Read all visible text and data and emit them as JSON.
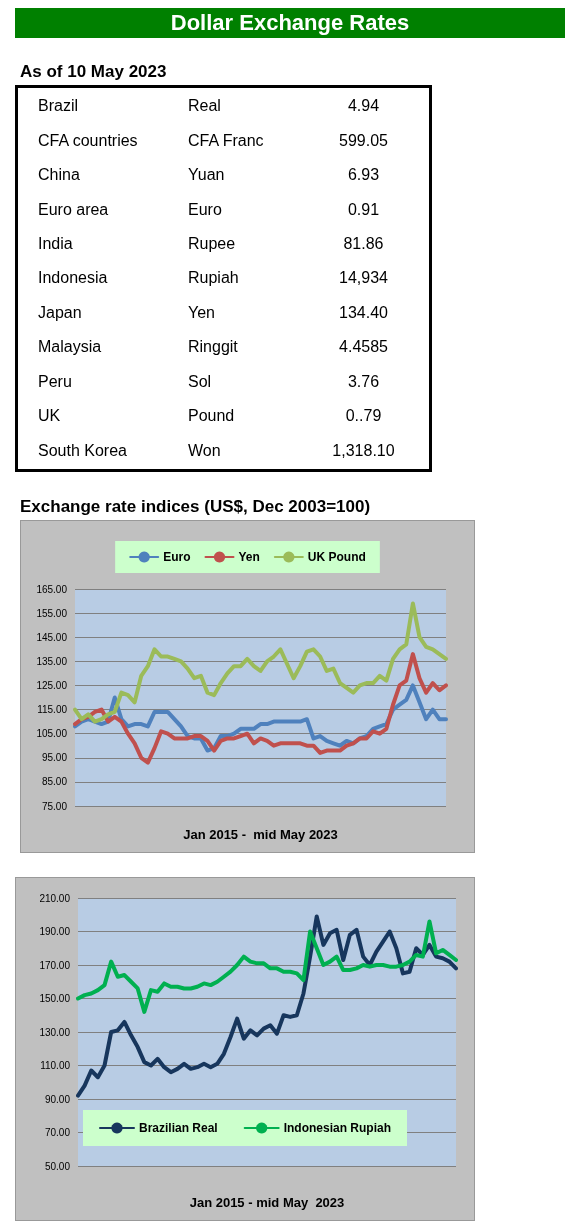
{
  "chart_data": [
    {
      "type": "other",
      "title": "Dollar Exchange Rates",
      "subtitle": "As of 10 May 2023",
      "cell_labels": [
        [
          "Brazil",
          "Real",
          "4.94"
        ],
        [
          "CFA countries",
          "CFA Franc",
          "599.05"
        ],
        [
          "China",
          "Yuan",
          "6.93"
        ],
        [
          "Euro area",
          "Euro",
          "0.91"
        ],
        [
          "India",
          "Rupee",
          "81.86"
        ],
        [
          "Indonesia",
          "Rupiah",
          "14,934"
        ],
        [
          "Japan",
          "Yen",
          "134.40"
        ],
        [
          "Malaysia",
          "Ringgit",
          "4.4585"
        ],
        [
          "Peru",
          "Sol",
          "3.76"
        ],
        [
          "UK",
          "Pound",
          "0..79"
        ],
        [
          "South Korea",
          "Won",
          "1,318.10"
        ]
      ]
    },
    {
      "type": "line",
      "title": "Exchange rate indices (US$, Dec 2003=100)",
      "xlabel": "Jan 2015 -  mid May 2023",
      "categories": [
        null,
        null,
        null,
        null,
        null,
        null,
        null,
        null,
        null,
        null,
        null,
        null,
        null,
        null,
        null,
        null,
        null,
        null,
        null,
        null,
        null,
        null,
        null,
        null,
        null,
        null,
        null,
        null,
        null,
        null,
        null,
        null,
        null,
        null,
        null,
        null,
        null,
        null,
        null,
        null,
        null,
        null,
        null,
        null,
        null,
        null,
        null,
        null,
        null,
        null,
        null,
        null,
        null,
        null,
        null,
        null,
        null
      ],
      "series": [
        {
          "name": "Euro",
          "color": "#4f81bd",
          "values": [
            108,
            110,
            111,
            110,
            109,
            110,
            120,
            111,
            108,
            109,
            109,
            108,
            114,
            114,
            114,
            111,
            108,
            104,
            103,
            103,
            98,
            99,
            104,
            104,
            105,
            107,
            107,
            107,
            109,
            109,
            110,
            110,
            110,
            110,
            110,
            111,
            103,
            104,
            102,
            101,
            100,
            102,
            101,
            103,
            104,
            107,
            108,
            109,
            115,
            117,
            119,
            125,
            118,
            111,
            115,
            111,
            111
          ]
        },
        {
          "name": "Yen",
          "color": "#c0504d",
          "values": [
            109,
            111,
            112,
            114,
            115,
            110,
            112,
            110,
            105,
            101,
            95,
            93,
            99,
            106,
            105,
            103,
            103,
            103,
            104,
            104,
            102,
            98,
            102,
            103,
            103,
            104,
            105,
            101,
            103,
            102,
            100,
            101,
            101,
            101,
            101,
            100,
            100,
            97,
            98,
            98,
            98,
            100,
            101,
            103,
            103,
            106,
            105,
            107,
            117,
            125,
            127,
            138,
            128,
            122,
            126,
            123,
            125
          ]
        },
        {
          "name": "UK Pound",
          "color": "#9bbb59",
          "values": [
            115,
            111,
            113,
            110,
            111,
            113,
            114,
            122,
            121,
            118,
            129,
            133,
            140,
            137,
            137,
            136,
            135,
            132,
            128,
            129,
            122,
            121,
            126,
            130,
            133,
            133,
            136,
            133,
            131,
            135,
            137,
            140,
            134,
            128,
            133,
            139,
            140,
            137,
            131,
            132,
            126,
            124,
            122,
            125,
            126,
            126,
            129,
            127,
            136,
            140,
            142,
            159,
            145,
            141,
            140,
            138,
            136
          ]
        }
      ],
      "ylim": [
        75,
        165
      ],
      "yticks": [
        {
          "value": 75,
          "label": "75.00"
        },
        {
          "value": 85,
          "label": "85.00"
        },
        {
          "value": 95,
          "label": "95.00"
        },
        {
          "value": 105,
          "label": "105.00"
        },
        {
          "value": 115,
          "label": "115.00"
        },
        {
          "value": 125,
          "label": "125.00"
        },
        {
          "value": 135,
          "label": "135.00"
        },
        {
          "value": 145,
          "label": "145.00"
        },
        {
          "value": 155,
          "label": "155.00"
        },
        {
          "value": 165,
          "label": "165.00"
        }
      ],
      "grid": "y",
      "legend": "top",
      "marker": "none",
      "line_style": "solid"
    },
    {
      "type": "line",
      "xlabel": "Jan 2015 - mid May  2023",
      "categories": [
        null,
        null,
        null,
        null,
        null,
        null,
        null,
        null,
        null,
        null,
        null,
        null,
        null,
        null,
        null,
        null,
        null,
        null,
        null,
        null,
        null,
        null,
        null,
        null,
        null,
        null,
        null,
        null,
        null,
        null,
        null,
        null,
        null,
        null,
        null,
        null,
        null,
        null,
        null,
        null,
        null,
        null,
        null,
        null,
        null,
        null,
        null,
        null,
        null,
        null,
        null,
        null,
        null,
        null,
        null,
        null,
        null,
        null
      ],
      "series": [
        {
          "name": "Brazilian Real",
          "color": "#17365d",
          "values": [
            92,
            98,
            107,
            103,
            110,
            130,
            131,
            136,
            128,
            121,
            112,
            110,
            114,
            109,
            106,
            108,
            111,
            108,
            109,
            111,
            109,
            111,
            117,
            127,
            138,
            126,
            131,
            128,
            132,
            134,
            129,
            140,
            139,
            140,
            153,
            175,
            199,
            182,
            189,
            191,
            173,
            188,
            191,
            175,
            170,
            178,
            184,
            190,
            180,
            165,
            166,
            180,
            176,
            182,
            175,
            174,
            172,
            168
          ]
        },
        {
          "name": "Indonesian Rupiah",
          "color": "#00b050",
          "values": [
            150,
            152,
            153,
            155,
            158,
            172,
            163,
            164,
            160,
            156,
            142,
            155,
            154,
            159,
            157,
            157,
            156,
            156,
            157,
            159,
            158,
            160,
            163,
            166,
            170,
            175,
            172,
            171,
            171,
            168,
            168,
            166,
            166,
            165,
            161,
            190,
            180,
            170,
            172,
            175,
            167,
            167,
            168,
            170,
            169,
            170,
            170,
            169,
            169,
            170,
            172,
            176,
            175,
            196,
            177,
            179,
            176,
            173
          ]
        }
      ],
      "ylim": [
        50,
        210
      ],
      "yticks": [
        {
          "value": 50,
          "label": "50.00"
        },
        {
          "value": 70,
          "label": "70.00"
        },
        {
          "value": 90,
          "label": "90.00"
        },
        {
          "value": 110,
          "label": "110.00"
        },
        {
          "value": 130,
          "label": "130.00"
        },
        {
          "value": 150,
          "label": "150.00"
        },
        {
          "value": 170,
          "label": "170.00"
        },
        {
          "value": 190,
          "label": "190.00"
        },
        {
          "value": 210,
          "label": "210.00"
        }
      ],
      "grid": "y",
      "legend": "bottom",
      "marker": "none",
      "line_style": "solid"
    }
  ]
}
